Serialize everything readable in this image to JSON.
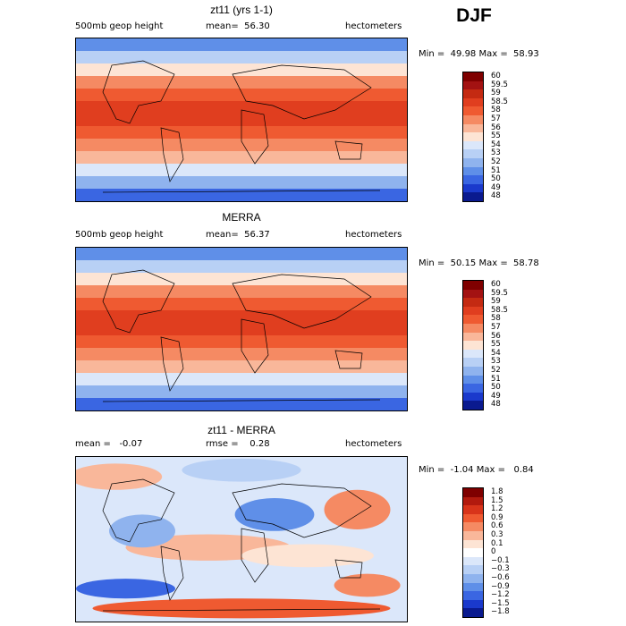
{
  "season": "DJF",
  "chart_data": [
    {
      "type": "heatmap",
      "title": "zt11 (yrs 1-1)",
      "variable": "500mb geop height",
      "stat_label": "mean=  56.30",
      "units": "hectometers",
      "minmax": "Min =  49.98 Max =  58.93",
      "min": 49.98,
      "max": 58.93,
      "mean": 56.3,
      "levels": [
        "60",
        "59.5",
        "59",
        "58.5",
        "58",
        "57",
        "56",
        "55",
        "54",
        "53",
        "52",
        "51",
        "50",
        "49",
        "48"
      ],
      "colors": [
        "#7f0000",
        "#a31212",
        "#c42a12",
        "#e03e1f",
        "#ef5a31",
        "#f58a63",
        "#f9b79a",
        "#fde4d4",
        "#dbe7fa",
        "#b8d0f5",
        "#8fb3ee",
        "#5f8fe8",
        "#3a66e2",
        "#1a39cc",
        "#0a1a8f"
      ],
      "lat_band_values": [
        51,
        53,
        55,
        57,
        58,
        58.5,
        58.5,
        58,
        57,
        56,
        54,
        52,
        50
      ]
    },
    {
      "type": "heatmap",
      "title": "MERRA",
      "variable": "500mb geop height",
      "stat_label": "mean=  56.37",
      "units": "hectometers",
      "minmax": "Min =  50.15 Max =  58.78",
      "min": 50.15,
      "max": 58.78,
      "mean": 56.37,
      "levels": [
        "60",
        "59.5",
        "59",
        "58.5",
        "58",
        "57",
        "56",
        "55",
        "54",
        "53",
        "52",
        "51",
        "50",
        "49",
        "48"
      ],
      "colors": [
        "#7f0000",
        "#a31212",
        "#c42a12",
        "#e03e1f",
        "#ef5a31",
        "#f58a63",
        "#f9b79a",
        "#fde4d4",
        "#dbe7fa",
        "#b8d0f5",
        "#8fb3ee",
        "#5f8fe8",
        "#3a66e2",
        "#1a39cc",
        "#0a1a8f"
      ],
      "lat_band_values": [
        51,
        53,
        55,
        57,
        58,
        58.5,
        58.5,
        58,
        57,
        56,
        54,
        52,
        50
      ]
    },
    {
      "type": "heatmap",
      "title": "zt11 - MERRA",
      "stat_label": "mean =   -0.07",
      "rmse_label": "rmse =    0.28",
      "units": "hectometers",
      "minmax": "Min =  -1.04 Max =   0.84",
      "min": -1.04,
      "max": 0.84,
      "mean": -0.07,
      "rmse": 0.28,
      "levels": [
        "1.8",
        "1.5",
        "1.2",
        "0.9",
        "0.6",
        "0.3",
        "0.1",
        "0",
        "−0.1",
        "−0.3",
        "−0.6",
        "−0.9",
        "−1.2",
        "−1.5",
        "−1.8"
      ],
      "colors": [
        "#7f0000",
        "#b21a0e",
        "#d8341a",
        "#ef5a31",
        "#f58a63",
        "#f9b79a",
        "#fde4d4",
        "#ffffff",
        "#dbe7fa",
        "#b8d0f5",
        "#8fb3ee",
        "#5f8fe8",
        "#3a66e2",
        "#1a39cc",
        "#0a1a8f"
      ]
    }
  ]
}
